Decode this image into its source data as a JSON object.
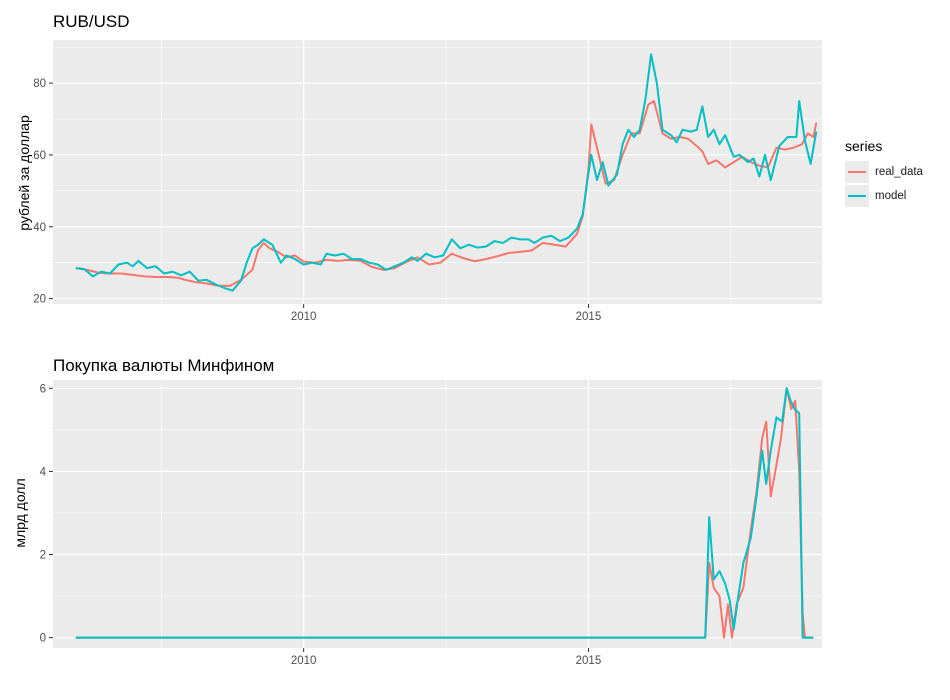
{
  "chart_data": [
    {
      "type": "line",
      "title": "RUB/USD",
      "ylabel": "рублей за доллар",
      "xlabel": "",
      "xlim": [
        2005.6,
        2019.1
      ],
      "ylim": [
        18.5,
        92
      ],
      "xticks": [
        2010,
        2015
      ],
      "xtick_labels": [
        "2010",
        "2015"
      ],
      "yticks": [
        20,
        40,
        60,
        80
      ],
      "ytick_labels": [
        "20",
        "40",
        "60",
        "80"
      ],
      "grid": true,
      "legend_position": "right",
      "series": [
        {
          "name": "real_data",
          "color": "#F8766D",
          "points": [
            [
              2006.0,
              28.5
            ],
            [
              2006.2,
              28.0
            ],
            [
              2006.4,
              27.2
            ],
            [
              2006.6,
              27.0
            ],
            [
              2006.8,
              27.0
            ],
            [
              2007.0,
              26.6
            ],
            [
              2007.2,
              26.2
            ],
            [
              2007.4,
              26.0
            ],
            [
              2007.6,
              26.0
            ],
            [
              2007.8,
              25.8
            ],
            [
              2007.9,
              25.3
            ],
            [
              2008.1,
              24.6
            ],
            [
              2008.3,
              24.2
            ],
            [
              2008.5,
              23.6
            ],
            [
              2008.7,
              23.5
            ],
            [
              2008.9,
              25.2
            ],
            [
              2009.1,
              28.0
            ],
            [
              2009.2,
              33.5
            ],
            [
              2009.3,
              35.5
            ],
            [
              2009.4,
              34.0
            ],
            [
              2009.55,
              33.0
            ],
            [
              2009.7,
              31.5
            ],
            [
              2009.85,
              32.0
            ],
            [
              2010.0,
              30.3
            ],
            [
              2010.2,
              30.0
            ],
            [
              2010.4,
              30.8
            ],
            [
              2010.6,
              30.5
            ],
            [
              2010.8,
              30.8
            ],
            [
              2011.0,
              30.5
            ],
            [
              2011.2,
              28.8
            ],
            [
              2011.4,
              28.0
            ],
            [
              2011.6,
              28.5
            ],
            [
              2011.8,
              30.2
            ],
            [
              2012.0,
              31.5
            ],
            [
              2012.2,
              29.5
            ],
            [
              2012.4,
              30.0
            ],
            [
              2012.6,
              32.5
            ],
            [
              2012.8,
              31.3
            ],
            [
              2013.0,
              30.4
            ],
            [
              2013.2,
              31.0
            ],
            [
              2013.4,
              31.8
            ],
            [
              2013.6,
              32.7
            ],
            [
              2013.8,
              33.0
            ],
            [
              2014.0,
              33.4
            ],
            [
              2014.2,
              35.5
            ],
            [
              2014.4,
              35.0
            ],
            [
              2014.6,
              34.5
            ],
            [
              2014.8,
              38.0
            ],
            [
              2014.9,
              43.0
            ],
            [
              2015.0,
              56.0
            ],
            [
              2015.05,
              68.5
            ],
            [
              2015.15,
              62.0
            ],
            [
              2015.3,
              52.0
            ],
            [
              2015.45,
              53.0
            ],
            [
              2015.6,
              60.0
            ],
            [
              2015.75,
              66.0
            ],
            [
              2015.9,
              66.0
            ],
            [
              2016.05,
              74.0
            ],
            [
              2016.15,
              75.0
            ],
            [
              2016.3,
              66.0
            ],
            [
              2016.45,
              64.5
            ],
            [
              2016.6,
              65.0
            ],
            [
              2016.75,
              64.5
            ],
            [
              2016.9,
              62.5
            ],
            [
              2017.0,
              61.0
            ],
            [
              2017.1,
              57.5
            ],
            [
              2017.25,
              58.5
            ],
            [
              2017.4,
              56.5
            ],
            [
              2017.55,
              58.0
            ],
            [
              2017.7,
              59.5
            ],
            [
              2017.85,
              58.0
            ],
            [
              2018.0,
              57.0
            ],
            [
              2018.15,
              56.5
            ],
            [
              2018.3,
              62.0
            ],
            [
              2018.45,
              61.5
            ],
            [
              2018.6,
              62.0
            ],
            [
              2018.75,
              63.0
            ],
            [
              2018.85,
              66.0
            ],
            [
              2018.95,
              65.0
            ],
            [
              2019.0,
              69.0
            ]
          ]
        },
        {
          "name": "model",
          "color": "#00BFC4",
          "points": [
            [
              2006.0,
              28.5
            ],
            [
              2006.15,
              28.2
            ],
            [
              2006.3,
              26.2
            ],
            [
              2006.45,
              27.5
            ],
            [
              2006.6,
              27.0
            ],
            [
              2006.75,
              29.5
            ],
            [
              2006.9,
              30.0
            ],
            [
              2007.0,
              29.0
            ],
            [
              2007.1,
              30.5
            ],
            [
              2007.25,
              28.5
            ],
            [
              2007.4,
              29.0
            ],
            [
              2007.55,
              27.0
            ],
            [
              2007.7,
              27.5
            ],
            [
              2007.85,
              26.5
            ],
            [
              2008.0,
              27.5
            ],
            [
              2008.15,
              25.0
            ],
            [
              2008.3,
              25.2
            ],
            [
              2008.45,
              24.0
            ],
            [
              2008.6,
              23.0
            ],
            [
              2008.75,
              22.2
            ],
            [
              2008.9,
              25.0
            ],
            [
              2009.0,
              30.0
            ],
            [
              2009.1,
              34.0
            ],
            [
              2009.2,
              35.0
            ],
            [
              2009.3,
              36.5
            ],
            [
              2009.45,
              35.0
            ],
            [
              2009.6,
              30.0
            ],
            [
              2009.7,
              32.0
            ],
            [
              2009.85,
              31.0
            ],
            [
              2010.0,
              29.5
            ],
            [
              2010.15,
              30.0
            ],
            [
              2010.3,
              29.5
            ],
            [
              2010.4,
              32.5
            ],
            [
              2010.55,
              32.0
            ],
            [
              2010.7,
              32.5
            ],
            [
              2010.85,
              31.0
            ],
            [
              2011.0,
              31.0
            ],
            [
              2011.15,
              30.0
            ],
            [
              2011.3,
              29.5
            ],
            [
              2011.45,
              28.0
            ],
            [
              2011.6,
              29.0
            ],
            [
              2011.75,
              30.0
            ],
            [
              2011.9,
              31.5
            ],
            [
              2012.0,
              30.5
            ],
            [
              2012.15,
              32.5
            ],
            [
              2012.3,
              31.5
            ],
            [
              2012.45,
              32.0
            ],
            [
              2012.6,
              36.5
            ],
            [
              2012.75,
              34.0
            ],
            [
              2012.9,
              35.0
            ],
            [
              2013.05,
              34.2
            ],
            [
              2013.2,
              34.5
            ],
            [
              2013.35,
              36.0
            ],
            [
              2013.5,
              35.5
            ],
            [
              2013.65,
              37.0
            ],
            [
              2013.8,
              36.5
            ],
            [
              2013.95,
              36.5
            ],
            [
              2014.05,
              35.5
            ],
            [
              2014.2,
              37.0
            ],
            [
              2014.35,
              37.5
            ],
            [
              2014.5,
              36.0
            ],
            [
              2014.65,
              37.0
            ],
            [
              2014.8,
              39.5
            ],
            [
              2014.9,
              43.5
            ],
            [
              2015.0,
              55.0
            ],
            [
              2015.05,
              60.0
            ],
            [
              2015.15,
              53.0
            ],
            [
              2015.25,
              58.0
            ],
            [
              2015.35,
              51.5
            ],
            [
              2015.5,
              54.5
            ],
            [
              2015.6,
              63.0
            ],
            [
              2015.7,
              67.0
            ],
            [
              2015.8,
              65.0
            ],
            [
              2015.9,
              67.0
            ],
            [
              2016.0,
              75.5
            ],
            [
              2016.1,
              88.0
            ],
            [
              2016.2,
              80.0
            ],
            [
              2016.3,
              67.0
            ],
            [
              2016.45,
              65.5
            ],
            [
              2016.55,
              63.5
            ],
            [
              2016.65,
              67.0
            ],
            [
              2016.8,
              66.5
            ],
            [
              2016.9,
              67.0
            ],
            [
              2017.0,
              73.5
            ],
            [
              2017.1,
              65.0
            ],
            [
              2017.2,
              67.0
            ],
            [
              2017.3,
              63.0
            ],
            [
              2017.4,
              65.5
            ],
            [
              2017.55,
              59.5
            ],
            [
              2017.65,
              60.0
            ],
            [
              2017.8,
              58.0
            ],
            [
              2017.9,
              59.0
            ],
            [
              2018.0,
              54.0
            ],
            [
              2018.1,
              60.0
            ],
            [
              2018.2,
              53.0
            ],
            [
              2018.35,
              62.5
            ],
            [
              2018.5,
              65.0
            ],
            [
              2018.65,
              65.0
            ],
            [
              2018.7,
              75.0
            ],
            [
              2018.8,
              64.0
            ],
            [
              2018.9,
              57.5
            ],
            [
              2019.0,
              66.5
            ]
          ]
        }
      ]
    },
    {
      "type": "line",
      "title": "Покупка валюты Минфином",
      "ylabel": "млрд долл",
      "xlabel": "",
      "xlim": [
        2005.6,
        2019.1
      ],
      "ylim": [
        -0.25,
        6.2
      ],
      "xticks": [
        2010,
        2015
      ],
      "xtick_labels": [
        "2010",
        "2015"
      ],
      "yticks": [
        0,
        2,
        4,
        6
      ],
      "ytick_labels": [
        "0",
        "2",
        "4",
        "6"
      ],
      "grid": true,
      "series": [
        {
          "name": "real_data",
          "color": "#F8766D",
          "points": [
            [
              2006.0,
              0
            ],
            [
              2017.05,
              0
            ],
            [
              2017.12,
              1.8
            ],
            [
              2017.2,
              1.2
            ],
            [
              2017.3,
              1.0
            ],
            [
              2017.38,
              0.0
            ],
            [
              2017.45,
              0.8
            ],
            [
              2017.52,
              0.0
            ],
            [
              2017.6,
              0.8
            ],
            [
              2017.72,
              1.2
            ],
            [
              2017.85,
              2.6
            ],
            [
              2017.95,
              3.5
            ],
            [
              2018.05,
              4.8
            ],
            [
              2018.12,
              5.2
            ],
            [
              2018.2,
              3.4
            ],
            [
              2018.28,
              4.0
            ],
            [
              2018.38,
              4.8
            ],
            [
              2018.48,
              6.0
            ],
            [
              2018.56,
              5.5
            ],
            [
              2018.63,
              5.7
            ],
            [
              2018.7,
              4.0
            ],
            [
              2018.76,
              0.6
            ],
            [
              2018.8,
              0
            ],
            [
              2018.95,
              0
            ]
          ]
        },
        {
          "name": "model",
          "color": "#00BFC4",
          "points": [
            [
              2006.0,
              0
            ],
            [
              2017.05,
              0
            ],
            [
              2017.12,
              2.9
            ],
            [
              2017.2,
              1.4
            ],
            [
              2017.3,
              1.6
            ],
            [
              2017.4,
              1.3
            ],
            [
              2017.48,
              0.9
            ],
            [
              2017.55,
              0.2
            ],
            [
              2017.62,
              0.9
            ],
            [
              2017.72,
              1.8
            ],
            [
              2017.85,
              2.4
            ],
            [
              2017.95,
              3.4
            ],
            [
              2018.05,
              4.5
            ],
            [
              2018.12,
              3.7
            ],
            [
              2018.2,
              4.5
            ],
            [
              2018.3,
              5.3
            ],
            [
              2018.4,
              5.2
            ],
            [
              2018.48,
              6.0
            ],
            [
              2018.55,
              5.7
            ],
            [
              2018.62,
              5.5
            ],
            [
              2018.7,
              5.4
            ],
            [
              2018.76,
              0
            ],
            [
              2018.95,
              0
            ]
          ]
        }
      ]
    }
  ],
  "legend": {
    "title": "series",
    "items": [
      {
        "label": "real_data",
        "color": "#F8766D"
      },
      {
        "label": "model",
        "color": "#00BFC4"
      }
    ]
  }
}
